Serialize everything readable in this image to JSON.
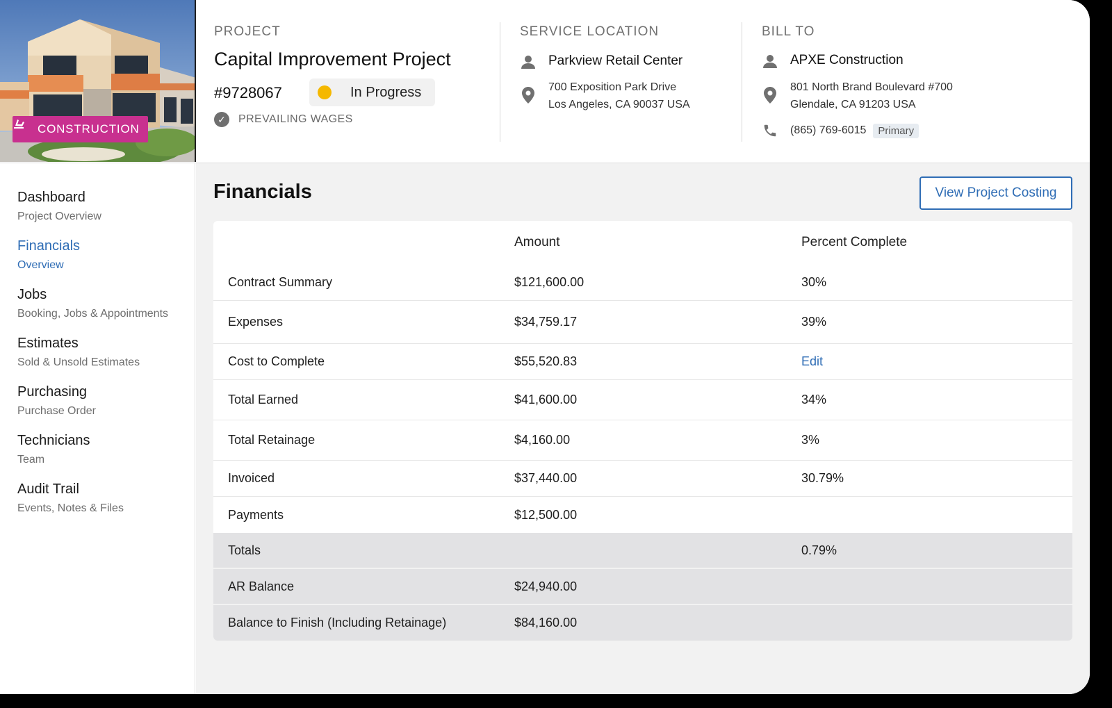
{
  "header": {
    "category_badge": "CONSTRUCTION",
    "project": {
      "label": "PROJECT",
      "name": "Capital Improvement Project",
      "number": "#9728067",
      "status": "In Progress",
      "status_color": "#f5b800",
      "wages": "PREVAILING WAGES"
    },
    "service_location": {
      "label": "SERVICE LOCATION",
      "name": "Parkview Retail Center",
      "address_line1": "700 Exposition Park Drive",
      "address_line2": "Los Angeles, CA 90037 USA"
    },
    "bill_to": {
      "label": "BILL TO",
      "name": "APXE Construction",
      "address_line1": "801 North Brand Boulevard #700",
      "address_line2": "Glendale, CA 91203 USA",
      "phone": "(865) 769-6015",
      "phone_tag": "Primary"
    }
  },
  "sidebar": {
    "items": [
      {
        "title": "Dashboard",
        "subtitle": "Project Overview"
      },
      {
        "title": "Financials",
        "subtitle": "Overview"
      },
      {
        "title": "Jobs",
        "subtitle": "Booking, Jobs & Appointments"
      },
      {
        "title": "Estimates",
        "subtitle": "Sold & Unsold Estimates"
      },
      {
        "title": "Purchasing",
        "subtitle": "Purchase Order"
      },
      {
        "title": "Technicians",
        "subtitle": "Team"
      },
      {
        "title": "Audit Trail",
        "subtitle": "Events, Notes & Files"
      }
    ]
  },
  "main": {
    "title": "Financials",
    "costing_button": "View Project Costing",
    "table": {
      "columns": [
        "",
        "Amount",
        "Percent Complete"
      ],
      "rows": [
        {
          "label": "Contract Summary",
          "amount": "$121,600.00",
          "percent": "30%"
        },
        {
          "label": "Expenses",
          "amount": "$34,759.17",
          "percent": "39%"
        },
        {
          "label": "Cost to Complete",
          "amount": "$55,520.83",
          "percent": "Edit"
        },
        {
          "label": "Total Earned",
          "amount": "$41,600.00",
          "percent": "34%"
        },
        {
          "label": "Total Retainage",
          "amount": "$4,160.00",
          "percent": "3%"
        },
        {
          "label": "Invoiced",
          "amount": "$37,440.00",
          "percent": "30.79%"
        },
        {
          "label": "Payments",
          "amount": "$12,500.00",
          "percent": ""
        },
        {
          "label": "Totals",
          "amount": "",
          "percent": "0.79%"
        },
        {
          "label": "AR Balance",
          "amount": "$24,940.00",
          "percent": ""
        },
        {
          "label": "Balance to Finish (Including Retainage)",
          "amount": "$84,160.00",
          "percent": ""
        }
      ]
    }
  },
  "colors": {
    "accent": "#2f6db5",
    "badge": "#c8308f",
    "status": "#f5b800"
  }
}
